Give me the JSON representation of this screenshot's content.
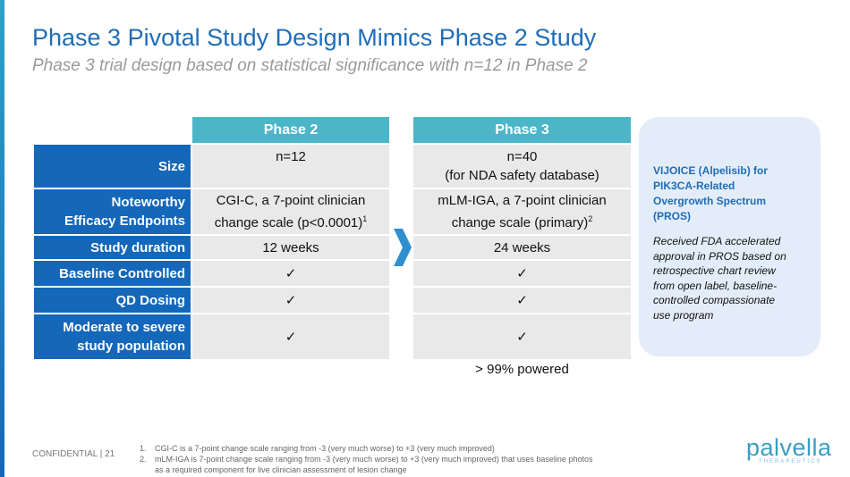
{
  "header": {
    "title": "Phase 3 Pivotal Study Design Mimics Phase 2 Study",
    "subtitle": "Phase 3 trial design based on statistical significance with n=12 in Phase 2"
  },
  "table": {
    "columns": [
      "Phase 2",
      "Phase 3"
    ],
    "rows": [
      {
        "label": [
          "Size"
        ],
        "cells": [
          {
            "lines": [
              "n=12"
            ]
          },
          {
            "lines": [
              "n=40",
              "(for NDA safety database)"
            ]
          }
        ]
      },
      {
        "label": [
          "Noteworthy",
          "Efficacy Endpoints"
        ],
        "cells": [
          {
            "lines": [
              "CGI-C, a 7-point clinician",
              "change scale (p<0.0001)"
            ],
            "sup": "1"
          },
          {
            "lines": [
              "mLM-IGA, a 7-point clinician",
              "change scale (primary)"
            ],
            "sup": "2"
          }
        ]
      },
      {
        "label": [
          "Study duration"
        ],
        "cells": [
          {
            "lines": [
              "12 weeks"
            ]
          },
          {
            "lines": [
              "24 weeks"
            ]
          }
        ]
      },
      {
        "label": [
          "Baseline Controlled"
        ],
        "cells": [
          {
            "lines": [
              "✓"
            ]
          },
          {
            "lines": [
              "✓"
            ]
          }
        ]
      },
      {
        "label": [
          "QD Dosing"
        ],
        "cells": [
          {
            "lines": [
              "✓"
            ]
          },
          {
            "lines": [
              "✓"
            ]
          }
        ]
      },
      {
        "label": [
          "Moderate to severe",
          "study population"
        ],
        "cells": [
          {
            "lines": [
              "✓"
            ]
          },
          {
            "lines": [
              "✓"
            ]
          }
        ]
      }
    ],
    "phase3_note": "> 99% powered"
  },
  "sidebar": {
    "heading": [
      "VIJOICE (Alpelisib) for",
      "PIK3CA-Related",
      "Overgrowth Spectrum",
      "(PROS)"
    ],
    "body": [
      "Received FDA accelerated",
      "approval in PROS based on",
      "retrospective chart review",
      "from open label, baseline-",
      "controlled compassionate",
      "use program"
    ]
  },
  "footer": {
    "confidential": "CONFIDENTIAL | 21",
    "notes": [
      {
        "num": "1.",
        "lines": [
          "CGI-C is a 7-point change scale ranging from -3 (very much worse) to +3 (very much improved)"
        ]
      },
      {
        "num": "2.",
        "lines": [
          "mLM-IGA is 7-point change scale ranging from -3 (very much worse) to +3 (very much improved) that uses baseline photos",
          "as a required component for live clinician assessment of lesion change"
        ]
      }
    ],
    "logo": "palvella",
    "logo_sub": "THERAPEUTICS"
  }
}
